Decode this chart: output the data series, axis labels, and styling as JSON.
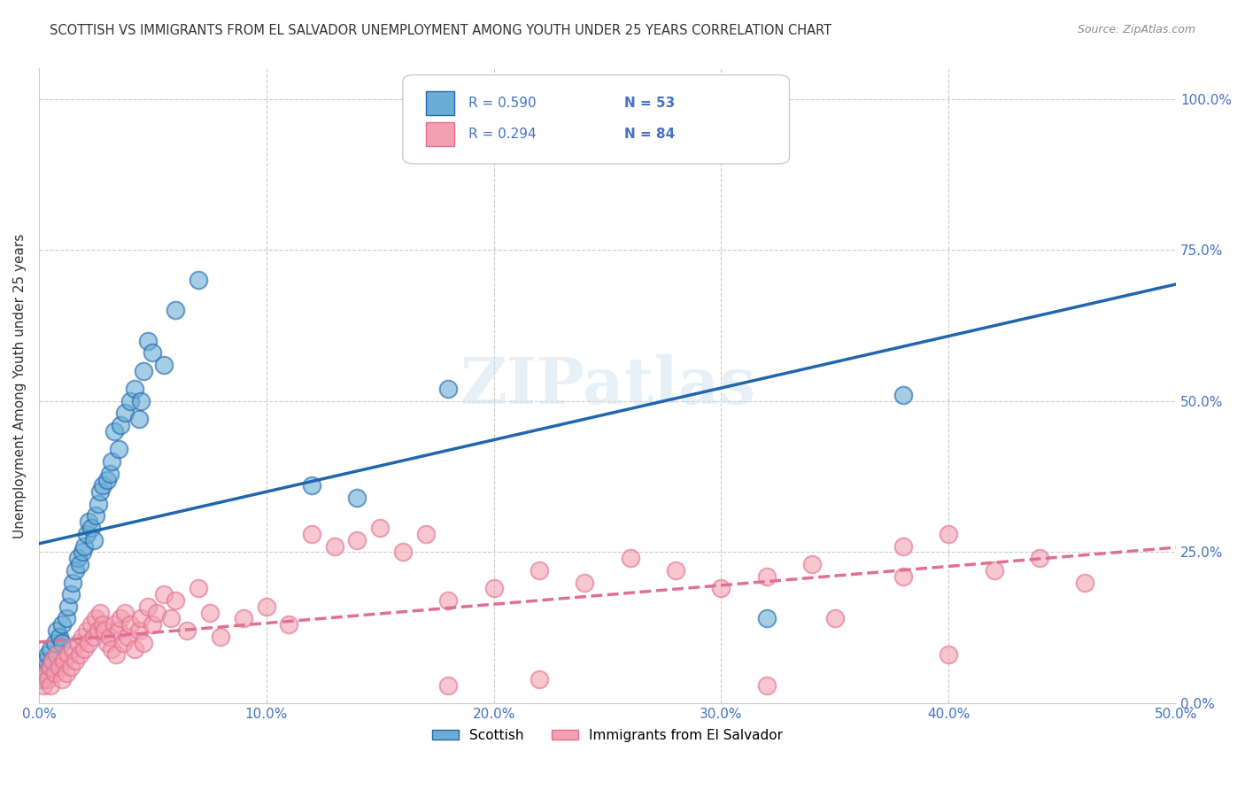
{
  "title": "SCOTTISH VS IMMIGRANTS FROM EL SALVADOR UNEMPLOYMENT AMONG YOUTH UNDER 25 YEARS CORRELATION CHART",
  "source": "Source: ZipAtlas.com",
  "ylabel": "Unemployment Among Youth under 25 years",
  "watermark": "ZIPatlas",
  "legend_blue_r": "R = 0.590",
  "legend_blue_n": "N = 53",
  "legend_pink_r": "R = 0.294",
  "legend_pink_n": "N = 84",
  "blue_color": "#6aaed6",
  "pink_color": "#f4a0b0",
  "blue_line_color": "#2166ac",
  "pink_line_color": "#e07090",
  "axis_label_color": "#4472c4",
  "grid_color": "#cccccc",
  "background_color": "#ffffff",
  "blue_scatter_x": [
    0.001,
    0.002,
    0.003,
    0.003,
    0.004,
    0.004,
    0.005,
    0.005,
    0.006,
    0.007,
    0.008,
    0.009,
    0.01,
    0.01,
    0.012,
    0.013,
    0.014,
    0.015,
    0.016,
    0.017,
    0.018,
    0.019,
    0.02,
    0.021,
    0.022,
    0.023,
    0.024,
    0.025,
    0.026,
    0.027,
    0.028,
    0.03,
    0.031,
    0.032,
    0.033,
    0.035,
    0.036,
    0.038,
    0.04,
    0.042,
    0.044,
    0.045,
    0.046,
    0.048,
    0.05,
    0.055,
    0.06,
    0.07,
    0.12,
    0.14,
    0.18,
    0.32,
    0.38
  ],
  "blue_scatter_y": [
    0.05,
    0.04,
    0.06,
    0.07,
    0.05,
    0.08,
    0.06,
    0.09,
    0.07,
    0.1,
    0.12,
    0.11,
    0.13,
    0.1,
    0.14,
    0.16,
    0.18,
    0.2,
    0.22,
    0.24,
    0.23,
    0.25,
    0.26,
    0.28,
    0.3,
    0.29,
    0.27,
    0.31,
    0.33,
    0.35,
    0.36,
    0.37,
    0.38,
    0.4,
    0.45,
    0.42,
    0.46,
    0.48,
    0.5,
    0.52,
    0.47,
    0.5,
    0.55,
    0.6,
    0.58,
    0.56,
    0.65,
    0.7,
    0.36,
    0.34,
    0.52,
    0.14,
    0.51
  ],
  "pink_scatter_x": [
    0.001,
    0.002,
    0.003,
    0.004,
    0.005,
    0.005,
    0.006,
    0.007,
    0.008,
    0.009,
    0.01,
    0.011,
    0.012,
    0.013,
    0.014,
    0.015,
    0.016,
    0.017,
    0.018,
    0.019,
    0.02,
    0.021,
    0.022,
    0.023,
    0.024,
    0.025,
    0.026,
    0.027,
    0.028,
    0.029,
    0.03,
    0.031,
    0.032,
    0.033,
    0.034,
    0.035,
    0.036,
    0.037,
    0.038,
    0.039,
    0.04,
    0.042,
    0.044,
    0.045,
    0.046,
    0.048,
    0.05,
    0.052,
    0.055,
    0.058,
    0.06,
    0.065,
    0.07,
    0.075,
    0.08,
    0.09,
    0.1,
    0.11,
    0.12,
    0.13,
    0.14,
    0.15,
    0.16,
    0.17,
    0.18,
    0.2,
    0.22,
    0.24,
    0.26,
    0.28,
    0.3,
    0.32,
    0.34,
    0.35,
    0.38,
    0.4,
    0.42,
    0.44,
    0.46,
    0.32,
    0.18,
    0.22,
    0.38,
    0.4
  ],
  "pink_scatter_y": [
    0.04,
    0.03,
    0.05,
    0.04,
    0.06,
    0.03,
    0.07,
    0.05,
    0.08,
    0.06,
    0.04,
    0.07,
    0.05,
    0.08,
    0.06,
    0.09,
    0.07,
    0.1,
    0.08,
    0.11,
    0.09,
    0.12,
    0.1,
    0.13,
    0.11,
    0.14,
    0.12,
    0.15,
    0.13,
    0.12,
    0.1,
    0.11,
    0.09,
    0.13,
    0.08,
    0.12,
    0.14,
    0.1,
    0.15,
    0.11,
    0.13,
    0.09,
    0.12,
    0.14,
    0.1,
    0.16,
    0.13,
    0.15,
    0.18,
    0.14,
    0.17,
    0.12,
    0.19,
    0.15,
    0.11,
    0.14,
    0.16,
    0.13,
    0.28,
    0.26,
    0.27,
    0.29,
    0.25,
    0.28,
    0.17,
    0.19,
    0.22,
    0.2,
    0.24,
    0.22,
    0.19,
    0.21,
    0.23,
    0.14,
    0.26,
    0.28,
    0.22,
    0.24,
    0.2,
    0.03,
    0.03,
    0.04,
    0.21,
    0.08
  ],
  "xlim": [
    0.0,
    0.5
  ],
  "ylim": [
    0.0,
    1.05
  ],
  "xticks": [
    0.0,
    0.1,
    0.2,
    0.3,
    0.4,
    0.5
  ],
  "yticks": [
    0.0,
    0.25,
    0.5,
    0.75,
    1.0
  ],
  "scatter_size": 200
}
